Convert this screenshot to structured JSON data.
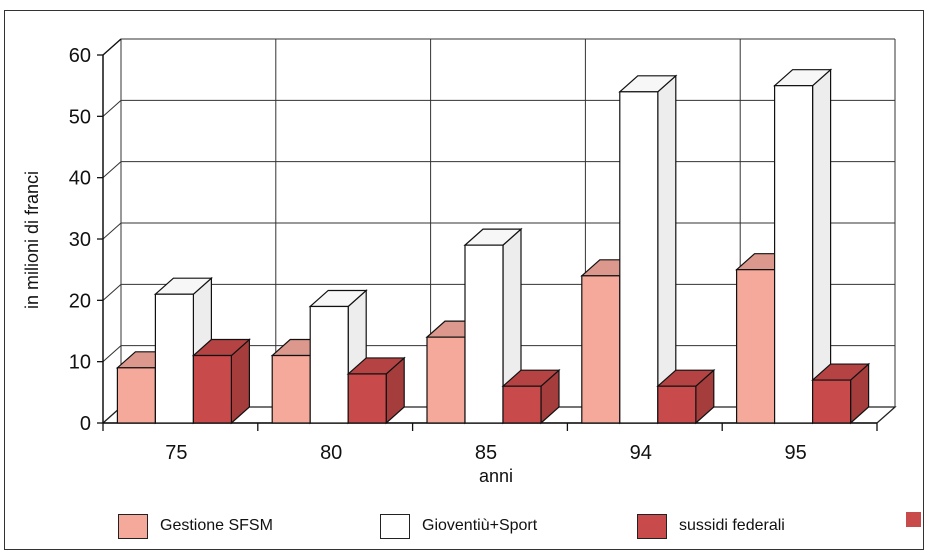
{
  "chart_data": {
    "type": "bar",
    "title": "",
    "xlabel": "anni",
    "ylabel": "in milioni di franci",
    "categories": [
      "75",
      "80",
      "85",
      "94",
      "95"
    ],
    "series": [
      {
        "name": "Gestione SFSM",
        "values": [
          9,
          11,
          14,
          24,
          25
        ],
        "color": "#f4a99b"
      },
      {
        "name": "Gioventiù+Sport",
        "values": [
          21,
          19,
          29,
          54,
          55
        ],
        "color": "#ffffff"
      },
      {
        "name": "sussidi federali",
        "values": [
          11,
          8,
          6,
          6,
          7
        ],
        "color": "#c94a4a"
      }
    ],
    "ylim": [
      0,
      60
    ],
    "yticks": [
      "0",
      "10",
      "20",
      "30",
      "40",
      "50",
      "60"
    ],
    "grid": true,
    "three_d": true,
    "legend_position": "bottom"
  }
}
